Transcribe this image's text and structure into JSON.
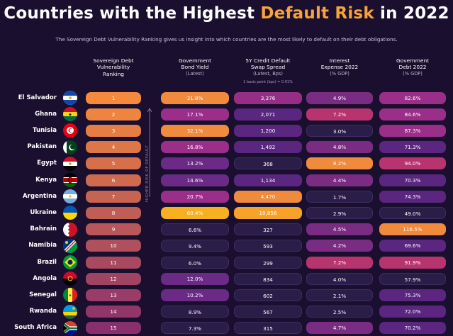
{
  "title": {
    "prefix": "Countries with the Highest ",
    "highlight": "Default Risk",
    "suffix": " in 2022"
  },
  "subtitle": "The Sovereign Debt Vulnerability Ranking gives us insight into which countries are the most likely to default on their debt obligations.",
  "risk_axis_label": "HIGHER RISK OF DEFAULT",
  "colors": {
    "background": "#1a0f2e",
    "accent": "#f7a23a"
  },
  "chart_data": {
    "type": "table",
    "title": "Countries with the Highest Default Risk in 2022",
    "columns": [
      {
        "key": "rank",
        "lines": [
          "Sovereign Debt",
          "Vulnerability",
          "Ranking"
        ]
      },
      {
        "key": "yield",
        "lines": [
          "Government",
          "Bond Yield"
        ],
        "sub": "(Latest)"
      },
      {
        "key": "cds",
        "lines": [
          "5Y Credit Default",
          "Swap Spread"
        ],
        "sub": "(Latest, Bps)",
        "note": "1 basis point (bps) = 0.01%"
      },
      {
        "key": "interest",
        "lines": [
          "Interest",
          "Expense 2022"
        ],
        "sub": "(% GDP)"
      },
      {
        "key": "debt",
        "lines": [
          "Government",
          "Debt 2022"
        ],
        "sub": "(% GDP)"
      }
    ],
    "rows": [
      {
        "country": "El Salvador",
        "flag": "el-salvador-flag",
        "rank": "1",
        "yield": "31.8%",
        "cds": "3,376",
        "interest": "4.9%",
        "debt": "82.6%"
      },
      {
        "country": "Ghana",
        "flag": "ghana-flag",
        "rank": "2",
        "yield": "17.1%",
        "cds": "2,071",
        "interest": "7.2%",
        "debt": "84.6%"
      },
      {
        "country": "Tunisia",
        "flag": "tunisia-flag",
        "rank": "3",
        "yield": "32.1%",
        "cds": "1,200",
        "interest": "3.0%",
        "debt": "87.3%"
      },
      {
        "country": "Pakistan",
        "flag": "pakistan-flag",
        "rank": "4",
        "yield": "16.8%",
        "cds": "1,492",
        "interest": "4.8%",
        "debt": "71.3%"
      },
      {
        "country": "Egypt",
        "flag": "egypt-flag",
        "rank": "5",
        "yield": "13.2%",
        "cds": "368",
        "interest": "8.2%",
        "debt": "94.0%"
      },
      {
        "country": "Kenya",
        "flag": "kenya-flag",
        "rank": "6",
        "yield": "14.6%",
        "cds": "1,134",
        "interest": "4.4%",
        "debt": "70.3%"
      },
      {
        "country": "Argentina",
        "flag": "argentina-flag",
        "rank": "7",
        "yield": "20.7%",
        "cds": "4,470",
        "interest": "1.7%",
        "debt": "74.3%"
      },
      {
        "country": "Ukraine",
        "flag": "ukraine-flag",
        "rank": "8",
        "yield": "60.4%",
        "cds": "10,856",
        "interest": "2.9%",
        "debt": "49.0%"
      },
      {
        "country": "Bahrain",
        "flag": "bahrain-flag",
        "rank": "9",
        "yield": "6.6%",
        "cds": "327",
        "interest": "4.5%",
        "debt": "116.5%"
      },
      {
        "country": "Namibia",
        "flag": "namibia-flag",
        "rank": "10",
        "yield": "9.4%",
        "cds": "593",
        "interest": "4.2%",
        "debt": "69.6%"
      },
      {
        "country": "Brazil",
        "flag": "brazil-flag",
        "rank": "11",
        "yield": "6.0%",
        "cds": "299",
        "interest": "7.2%",
        "debt": "91.9%"
      },
      {
        "country": "Angola",
        "flag": "angola-flag",
        "rank": "12",
        "yield": "12.0%",
        "cds": "834",
        "interest": "4.0%",
        "debt": "57.9%"
      },
      {
        "country": "Senegal",
        "flag": "senegal-flag",
        "rank": "13",
        "yield": "10.2%",
        "cds": "602",
        "interest": "2.1%",
        "debt": "75.3%"
      },
      {
        "country": "Rwanda",
        "flag": "rwanda-flag",
        "rank": "14",
        "yield": "8.9%",
        "cds": "567",
        "interest": "2.5%",
        "debt": "72.0%"
      },
      {
        "country": "South Africa",
        "flag": "south-africa-flag",
        "rank": "15",
        "yield": "7.3%",
        "cds": "315",
        "interest": "4.7%",
        "debt": "70.2%"
      }
    ]
  }
}
